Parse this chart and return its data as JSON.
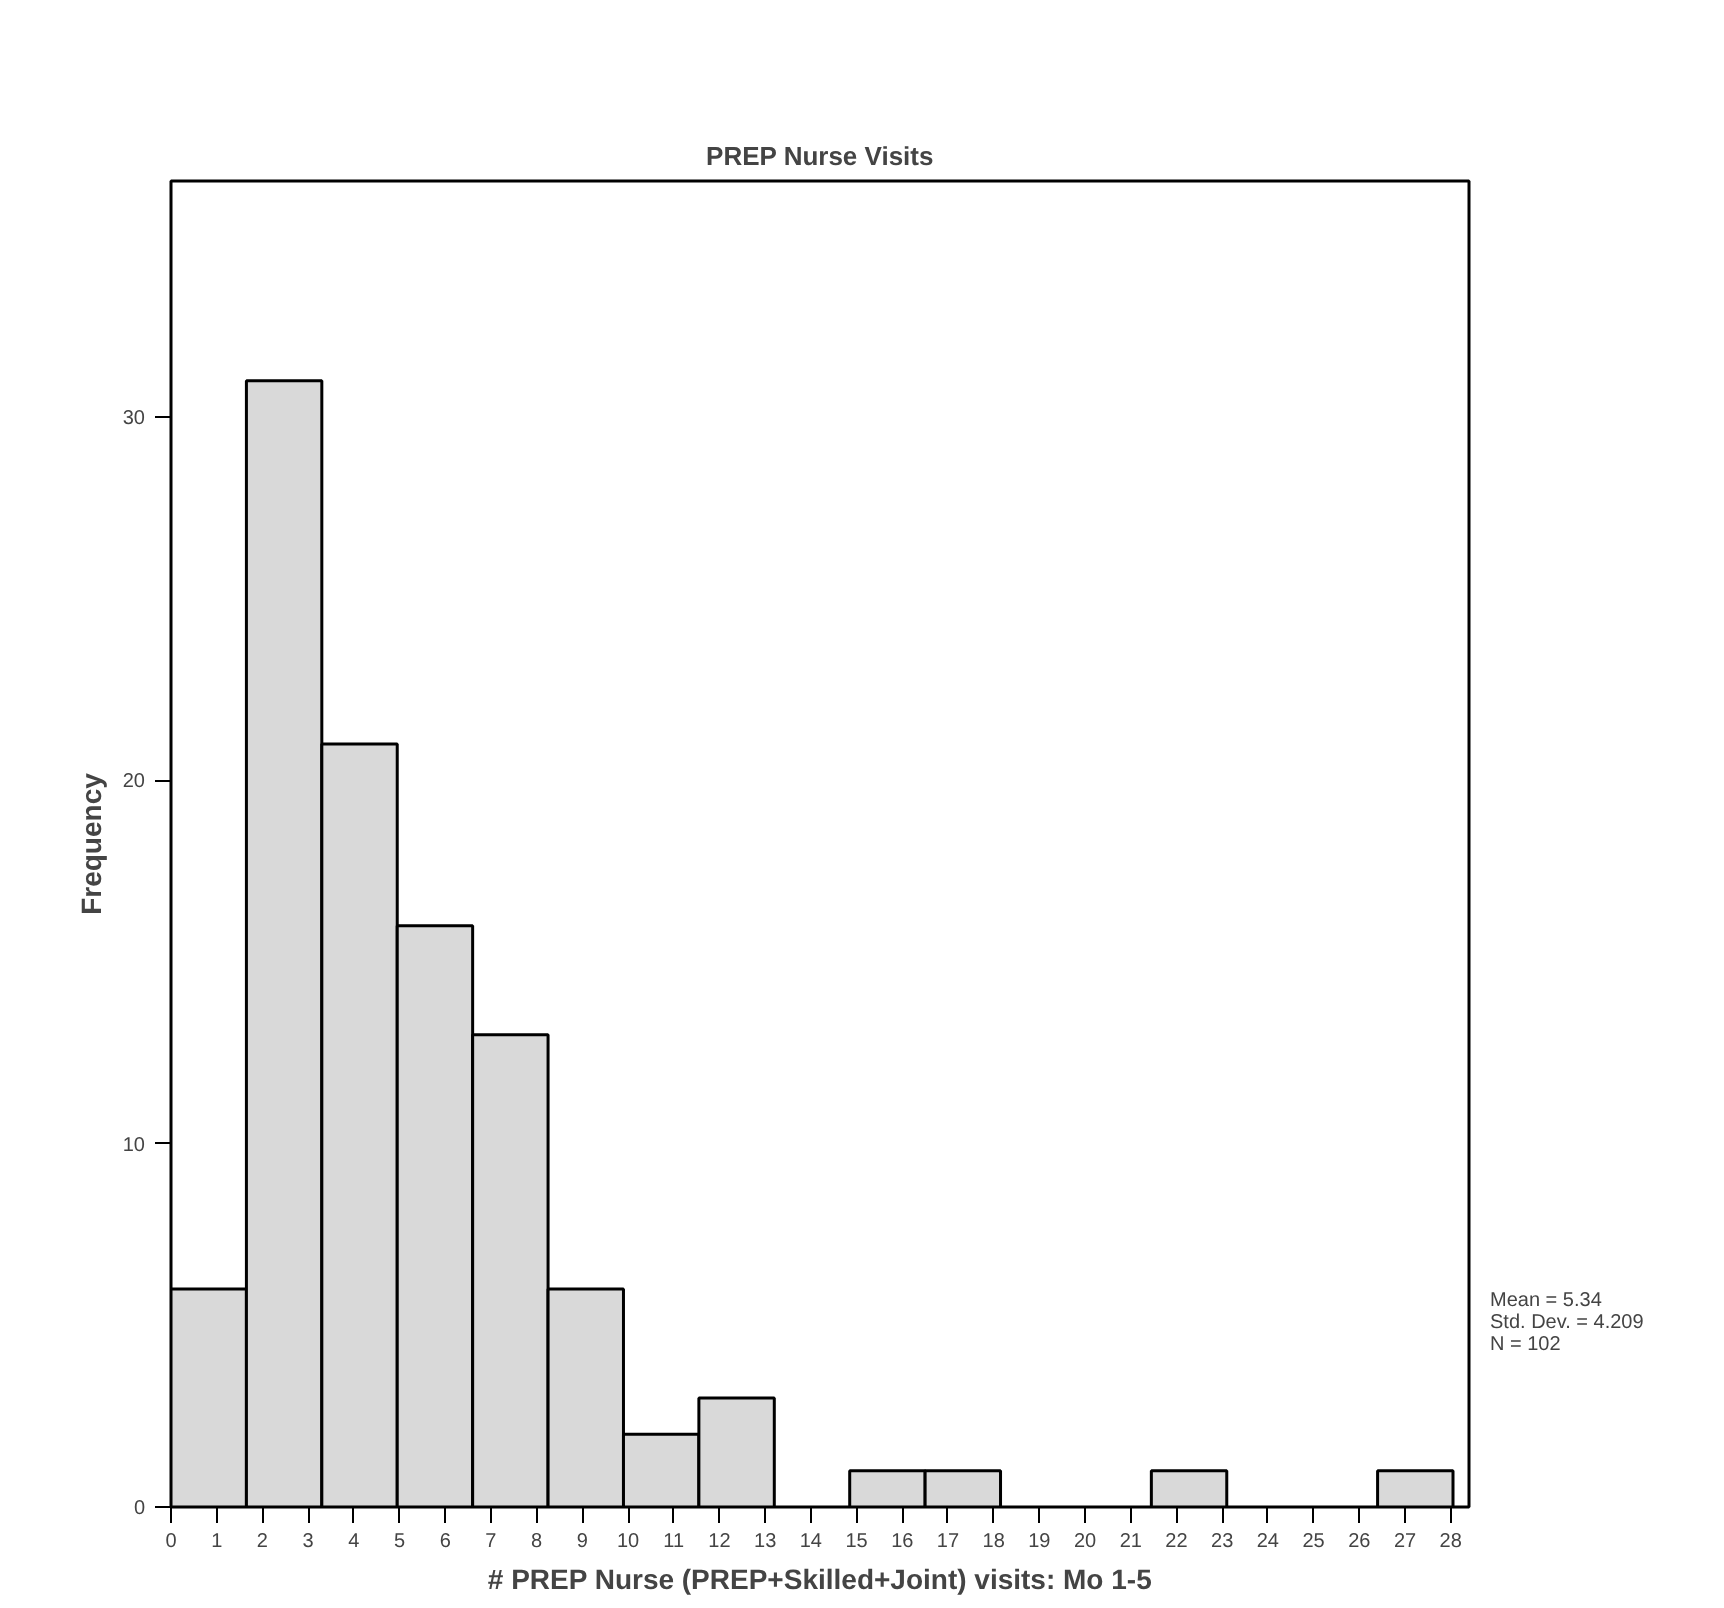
{
  "chart_data": {
    "type": "histogram",
    "title": "PREP Nurse Visits",
    "xlabel": "# PREP Nurse (PREP+Skilled+Joint) visits: Mo 1-5",
    "ylabel": "Frequency",
    "bins": [
      0,
      1.65,
      3.3,
      4.95,
      6.6,
      8.25,
      9.9,
      11.55,
      13.2,
      14.85,
      16.5,
      18.15,
      19.8,
      21.45,
      23.1,
      24.75,
      26.4,
      28.05
    ],
    "values": [
      6,
      31,
      21,
      16,
      13,
      6,
      2,
      3,
      0,
      1,
      1,
      0,
      0,
      1,
      0,
      0,
      1
    ],
    "color": "#d9d9d9",
    "xlim": [
      0,
      28.4
    ],
    "xticks": [
      0,
      1,
      2,
      3,
      4,
      5,
      6,
      7,
      8,
      9,
      10,
      11,
      12,
      13,
      14,
      15,
      16,
      17,
      18,
      19,
      20,
      21,
      22,
      23,
      24,
      25,
      26,
      27,
      28
    ],
    "ylim": [
      0,
      36.5
    ],
    "yticks": [
      0,
      10,
      20,
      30
    ],
    "grid": false,
    "annotations": [
      "Mean = 5.34",
      "Std. Dev. = 4.209",
      "N = 102"
    ]
  }
}
